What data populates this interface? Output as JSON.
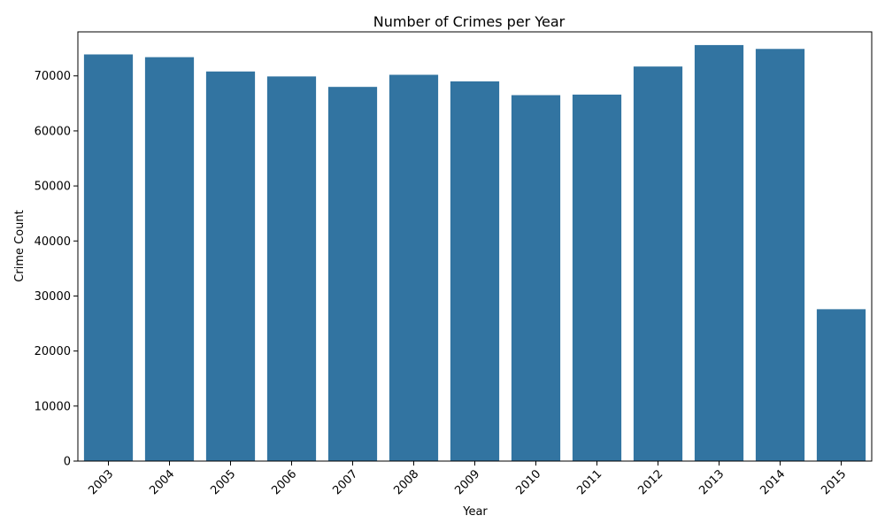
{
  "chart_data": {
    "type": "bar",
    "title": "Number of Crimes per Year",
    "xlabel": "Year",
    "ylabel": "Crime Count",
    "categories": [
      "2003",
      "2004",
      "2005",
      "2006",
      "2007",
      "2008",
      "2009",
      "2010",
      "2011",
      "2012",
      "2013",
      "2014",
      "2015"
    ],
    "values": [
      73900,
      73400,
      70800,
      69900,
      68000,
      70200,
      69000,
      66500,
      66600,
      71700,
      75600,
      74900,
      27600
    ],
    "ylim": [
      0,
      78000
    ],
    "yticks": [
      0,
      10000,
      20000,
      30000,
      40000,
      50000,
      60000,
      70000
    ],
    "xtick_rotation": 45,
    "grid": false,
    "legend": "none",
    "bar_color": "#3274a1"
  }
}
